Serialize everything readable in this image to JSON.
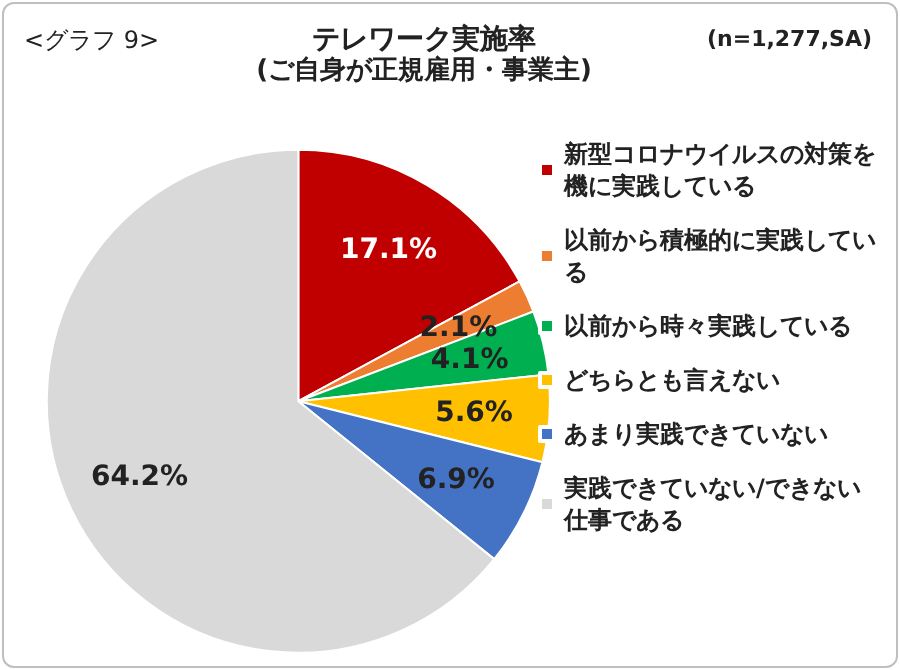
{
  "chart_data": {
    "type": "pie",
    "title": "テレワーク実施率",
    "subtitle": "(ご自身が正規雇用・事業主)",
    "annotations": [
      "<グラフ 9>",
      "(n=1,277,SA)"
    ],
    "categories": [
      "新型コロナウイルスの対策を機に実践している",
      "以前から積極的に実践している",
      "以前から時々実践している",
      "どちらとも言えない",
      "あまり実践できていない",
      "実践できていない/できない仕事である"
    ],
    "values": [
      17.1,
      2.1,
      4.1,
      5.6,
      6.9,
      64.2
    ],
    "colors": [
      "#c00000",
      "#ed7d31",
      "#00b050",
      "#ffc000",
      "#4472c4",
      "#d9d9d9"
    ],
    "value_labels": [
      "17.1%",
      "2.1%",
      "4.1%",
      "5.6%",
      "6.9%",
      "64.2%"
    ],
    "legend": "right"
  }
}
